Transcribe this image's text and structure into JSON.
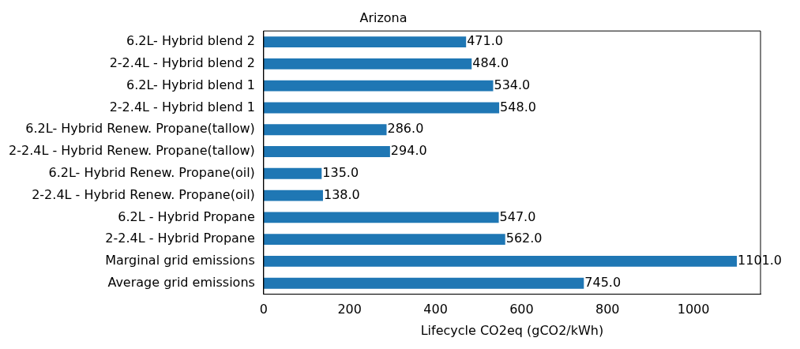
{
  "chart_data": {
    "type": "bar",
    "orientation": "horizontal",
    "title": "Arizona",
    "xlabel": "Lifecycle CO2eq (gCO2/kWh)",
    "categories": [
      "6.2L- Hybrid blend 2",
      "2-2.4L - Hybrid blend 2",
      "6.2L- Hybrid blend 1",
      "2-2.4L - Hybrid blend 1",
      "6.2L- Hybrid Renew. Propane(tallow)",
      "2-2.4L - Hybrid Renew. Propane(tallow)",
      "6.2L- Hybrid Renew. Propane(oil)",
      "2-2.4L - Hybrid Renew. Propane(oil)",
      "6.2L - Hybrid Propane",
      "2-2.4L - Hybrid Propane",
      "Marginal grid emissions",
      "Average grid emissions"
    ],
    "values": [
      471.0,
      484.0,
      534.0,
      548.0,
      286.0,
      294.0,
      135.0,
      138.0,
      547.0,
      562.0,
      1101.0,
      745.0
    ],
    "value_labels": [
      "471.0",
      "484.0",
      "534.0",
      "548.0",
      "286.0",
      "294.0",
      "135.0",
      "138.0",
      "547.0",
      "562.0",
      "1101.0",
      "745.0"
    ],
    "color": "#1f77b4",
    "xlim": [
      0,
      1156
    ],
    "xticks": [
      0,
      200,
      400,
      600,
      800,
      1000
    ],
    "grid": false,
    "legend": false
  }
}
